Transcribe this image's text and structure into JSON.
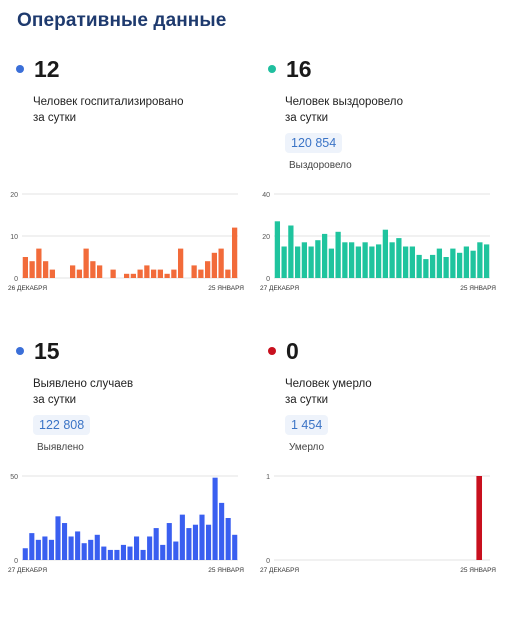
{
  "page_title": "Оперативные данные",
  "panels": [
    {
      "value": "12",
      "desc1": "Человек госпитализировано",
      "desc2": "за сутки",
      "total": "",
      "total_label": "",
      "dot_color": "#3b6fd8"
    },
    {
      "value": "16",
      "desc1": "Человек выздоровело",
      "desc2": "за сутки",
      "total": "120 854",
      "total_label": "Выздоровело",
      "dot_color": "#1fbf9f"
    },
    {
      "value": "15",
      "desc1": "Выявлено случаев",
      "desc2": "за сутки",
      "total": "122 808",
      "total_label": "Выявлено",
      "dot_color": "#3b6fd8"
    },
    {
      "value": "0",
      "desc1": "Человек умерло",
      "desc2": "за сутки",
      "total": "1 454",
      "total_label": "Умерло",
      "dot_color": "#c8101e"
    }
  ],
  "chart_data": [
    {
      "type": "bar",
      "color": "#f26b3a",
      "yticks": [
        "0",
        "10",
        "20"
      ],
      "ylim": [
        0,
        20
      ],
      "x_start_label": "26 ДЕКАБРЯ",
      "x_end_label": "25 ЯНВАРЯ",
      "values": [
        5,
        4,
        7,
        4,
        2,
        0,
        0,
        3,
        2,
        7,
        4,
        3,
        0,
        2,
        0,
        1,
        1,
        2,
        3,
        2,
        2,
        1,
        2,
        7,
        0,
        3,
        2,
        4,
        6,
        7,
        2,
        12
      ]
    },
    {
      "type": "bar",
      "color": "#1fc49e",
      "yticks": [
        "0",
        "20",
        "40"
      ],
      "ylim": [
        0,
        40
      ],
      "x_start_label": "27 ДЕКАБРЯ",
      "x_end_label": "25 ЯНВАРЯ",
      "values": [
        27,
        15,
        25,
        15,
        17,
        15,
        18,
        21,
        14,
        22,
        17,
        17,
        15,
        17,
        15,
        16,
        23,
        17,
        19,
        15,
        15,
        11,
        9,
        11,
        14,
        10,
        14,
        12,
        15,
        13,
        17,
        16
      ]
    },
    {
      "type": "bar",
      "color": "#3a5ff0",
      "yticks": [
        "0",
        "50"
      ],
      "ylim": [
        0,
        50
      ],
      "x_start_label": "27 ДЕКАБРЯ",
      "x_end_label": "25 ЯНВАРЯ",
      "values": [
        7,
        16,
        12,
        14,
        12,
        26,
        22,
        14,
        17,
        10,
        12,
        15,
        8,
        6,
        6,
        9,
        8,
        14,
        6,
        14,
        19,
        9,
        22,
        11,
        27,
        19,
        21,
        27,
        21,
        49,
        34,
        25,
        15
      ]
    },
    {
      "type": "bar",
      "color": "#c8101e",
      "yticks": [
        "0",
        "1"
      ],
      "ylim": [
        0,
        1
      ],
      "x_start_label": "27 ДЕКАБРЯ",
      "x_end_label": "25 ЯНВАРЯ",
      "values": [
        0,
        0,
        0,
        0,
        0,
        0,
        0,
        0,
        0,
        0,
        0,
        0,
        0,
        0,
        0,
        0,
        0,
        0,
        0,
        0,
        0,
        0,
        0,
        0,
        0,
        0,
        0,
        0,
        1,
        0
      ]
    }
  ]
}
